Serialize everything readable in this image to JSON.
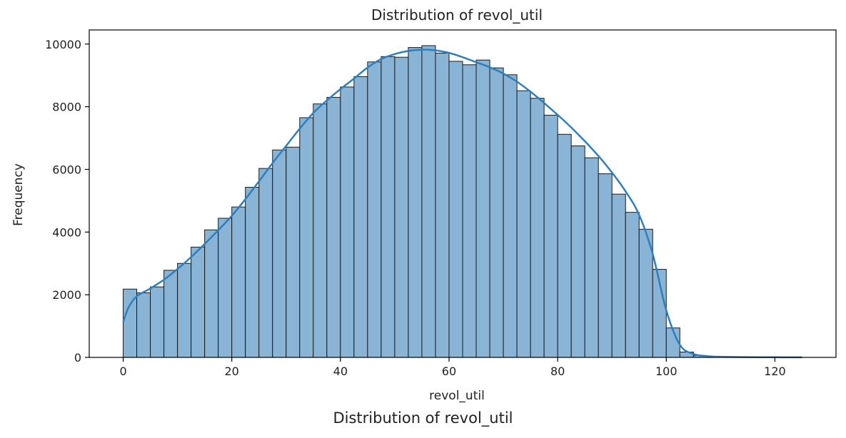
{
  "chart_data": {
    "type": "bar",
    "title": "Distribution of revol_util",
    "xlabel": "revol_util",
    "ylabel": "Frequency",
    "xlim": [
      -6.25,
      131.25
    ],
    "ylim": [
      0,
      10450
    ],
    "xticks": [
      0,
      20,
      40,
      60,
      80,
      100,
      120
    ],
    "yticks": [
      0,
      2000,
      4000,
      6000,
      8000,
      10000
    ],
    "bin_width": 2.5,
    "bin_start": 0,
    "values": [
      2180,
      2060,
      2250,
      2780,
      3000,
      3520,
      4070,
      4440,
      4800,
      5430,
      6030,
      6620,
      6710,
      7650,
      8090,
      8300,
      8630,
      8960,
      9430,
      9600,
      9580,
      9890,
      9950,
      9710,
      9450,
      9340,
      9490,
      9240,
      9020,
      8510,
      8270,
      7730,
      7120,
      6750,
      6370,
      5860,
      5210,
      4630,
      4090,
      2810,
      940,
      170,
      60,
      20,
      15,
      10,
      8,
      5,
      5,
      5
    ],
    "kde": {
      "x": [
        0,
        1,
        2.5,
        5,
        7.5,
        10,
        12.5,
        15,
        17.5,
        20,
        22.5,
        25,
        27.5,
        30,
        32.5,
        35,
        37.5,
        40,
        42.5,
        45,
        47.5,
        50,
        52.5,
        55,
        57.5,
        60,
        62.5,
        65,
        67.5,
        70,
        72.5,
        75,
        77.5,
        80,
        82.5,
        85,
        87.5,
        90,
        92.5,
        95,
        97.5,
        100,
        102.5,
        105,
        107.5,
        110,
        115,
        120,
        125
      ],
      "y": [
        1130,
        1600,
        1950,
        2200,
        2480,
        2820,
        3200,
        3620,
        4060,
        4520,
        5050,
        5620,
        6200,
        6750,
        7300,
        7800,
        8200,
        8560,
        8900,
        9250,
        9520,
        9680,
        9780,
        9820,
        9800,
        9720,
        9580,
        9420,
        9260,
        9060,
        8800,
        8480,
        8120,
        7740,
        7340,
        6900,
        6430,
        5900,
        5300,
        4550,
        3300,
        1500,
        400,
        110,
        40,
        20,
        10,
        5,
        3
      ]
    },
    "bar_color": "#89b4d6",
    "line_color": "#2f7fbd",
    "bottom_caption": "Distribution of revol_util"
  }
}
